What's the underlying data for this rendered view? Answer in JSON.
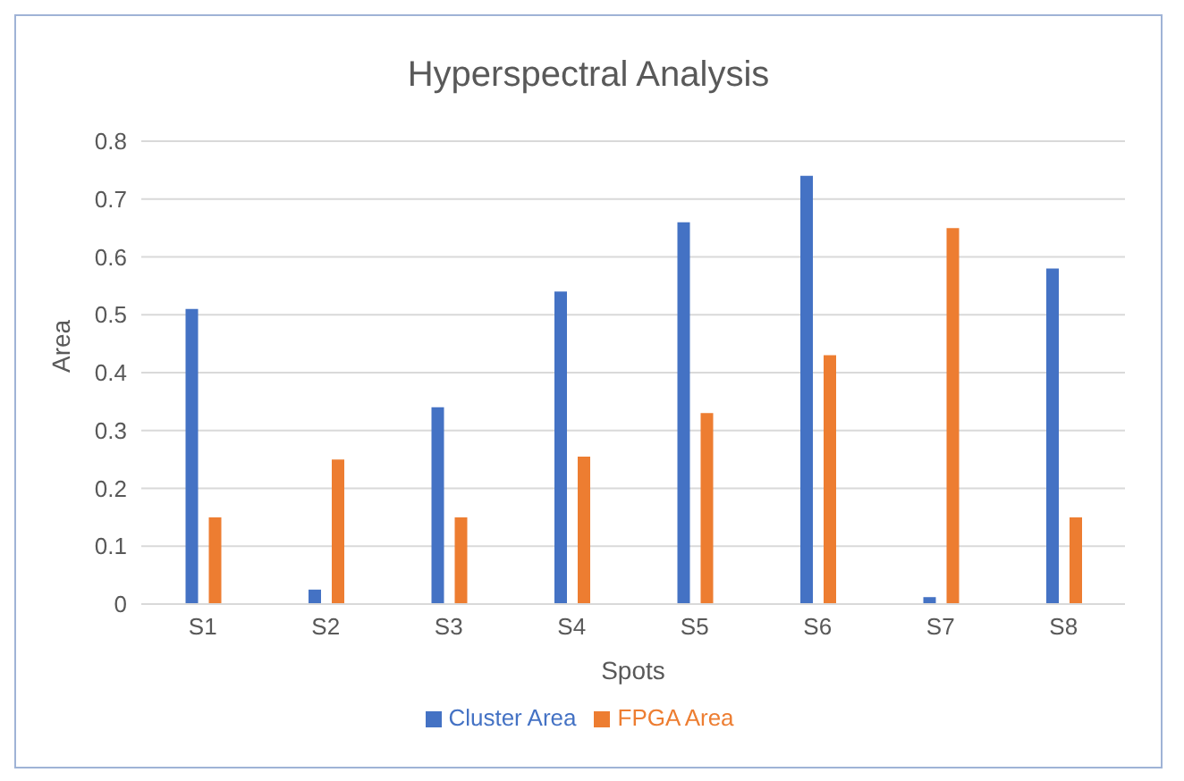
{
  "chart_data": {
    "type": "bar",
    "title": "Hyperspectral Analysis",
    "xlabel": "Spots",
    "ylabel": "Area",
    "categories": [
      "S1",
      "S2",
      "S3",
      "S4",
      "S5",
      "S6",
      "S7",
      "S8"
    ],
    "series": [
      {
        "name": "Cluster Area",
        "color": "#4472c4",
        "values": [
          0.51,
          0.025,
          0.34,
          0.54,
          0.66,
          0.74,
          0.012,
          0.58
        ]
      },
      {
        "name": "FPGA Area",
        "color": "#ed7d31",
        "values": [
          0.15,
          0.25,
          0.15,
          0.255,
          0.33,
          0.43,
          0.65,
          0.15
        ]
      }
    ],
    "ylim": [
      0,
      0.8
    ],
    "yticks": [
      0,
      0.1,
      0.2,
      0.3,
      0.4,
      0.5,
      0.6,
      0.7,
      0.8
    ],
    "grid": "y",
    "legend": "bottom"
  }
}
